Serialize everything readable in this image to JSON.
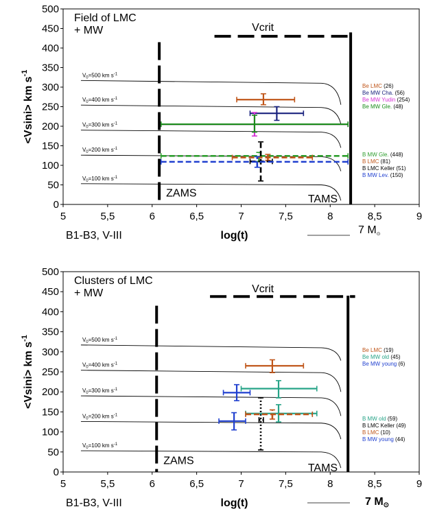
{
  "chart_data": [
    {
      "type": "line",
      "xlim": [
        5,
        9
      ],
      "ylim": [
        0,
        500
      ],
      "xticks": [
        "5",
        "5,5",
        "6",
        "6,5",
        "7",
        "7,5",
        "8",
        "8,5",
        "9"
      ],
      "yticks": [
        "0",
        "50",
        "100",
        "150",
        "200",
        "250",
        "300",
        "350",
        "400",
        "450",
        "500"
      ],
      "xlabel": "log(t)",
      "ylabel": "<Vsini> km s",
      "ylabel_sup": "-1",
      "annotations": {
        "topleft_1": "Field of LMC",
        "topleft_2": "+ MW",
        "vcrit": "Vcrit",
        "zams": "ZAMS",
        "tams": "TAMS",
        "bottom_left": "B1-B3, V-III",
        "mass_label": "7 M",
        "mass_sym": "⊙"
      },
      "v0_labels": [
        "V",
        "V",
        "V",
        "V",
        "V"
      ],
      "v0_values": [
        "=500 km s",
        "=400 km s",
        "=300 km s",
        "=200 km s",
        "=100 km s"
      ],
      "v0_sub": "0",
      "v0_sup": "-1",
      "tracks": [
        {
          "v0": 500,
          "start": 317,
          "flat": 310,
          "drop_to": 255
        },
        {
          "v0": 400,
          "start": 254,
          "flat": 248,
          "drop_to": 205
        },
        {
          "v0": 300,
          "start": 190,
          "flat": 185,
          "drop_to": 145
        },
        {
          "v0": 200,
          "start": 126,
          "flat": 122,
          "drop_to": 85
        },
        {
          "v0": 100,
          "start": 53,
          "flat": 50,
          "drop_to": 10
        }
      ],
      "zams_x": 6.08,
      "tams_x": 8.23,
      "vcrit_line": {
        "x0": 6.7,
        "x1": 8.2,
        "y": 430
      },
      "series": [
        {
          "name": "Be LMC",
          "count": "(26)",
          "color": "#c0561a",
          "x": 7.25,
          "y": 268,
          "xerr": [
            6.95,
            7.6
          ],
          "yerr": [
            255,
            283
          ],
          "style": "solid"
        },
        {
          "name": "Be MW Cha.",
          "count": "(56)",
          "color": "#1a237e",
          "x": 7.4,
          "y": 233,
          "xerr": [
            7.1,
            7.7
          ],
          "yerr": [
            215,
            250
          ],
          "style": "solid"
        },
        {
          "name": "Be MW Yudin",
          "count": "(254)",
          "color": "#d633d6",
          "x": 7.15,
          "y": 205,
          "xerr": [
            6.1,
            8.2
          ],
          "yerr": [
            175,
            235
          ],
          "style": "solid"
        },
        {
          "name": "Be MW Gle.",
          "count": "(48)",
          "color": "#1a8c1a",
          "x": 7.15,
          "y": 205,
          "xerr": [
            6.1,
            8.2
          ],
          "yerr": [
            185,
            228
          ],
          "style": "solid"
        },
        {
          "name": "B MW Gle.",
          "count": "(448)",
          "color": "#2e9e2e",
          "x": 7.2,
          "y": 124,
          "xerr": [
            6.1,
            8.2
          ],
          "yerr": [
            110,
            133
          ],
          "style": "dashed"
        },
        {
          "name": "B LMC",
          "count": "(81)",
          "color": "#c0561a",
          "x": 7.3,
          "y": 120,
          "xerr": [
            6.9,
            7.8
          ],
          "yerr": [
            113,
            128
          ],
          "style": "dashed"
        },
        {
          "name": "B LMC Keller",
          "count": "(51)",
          "color": "#000000",
          "x": 7.22,
          "y": 110,
          "xerr": [
            7.1,
            7.35
          ],
          "yerr": [
            60,
            160
          ],
          "style": "dashed"
        },
        {
          "name": "B MW Lev.",
          "count": "(150)",
          "color": "#1f3fcf",
          "x": 7.18,
          "y": 109,
          "xerr": [
            6.1,
            8.2
          ],
          "yerr": [
            95,
            122
          ],
          "style": "dashed"
        }
      ]
    },
    {
      "type": "line",
      "xlim": [
        5,
        9
      ],
      "ylim": [
        0,
        500
      ],
      "xticks": [
        "5",
        "5,5",
        "6",
        "6,5",
        "7",
        "7,5",
        "8",
        "8,5",
        "9"
      ],
      "yticks": [
        "0",
        "50",
        "100",
        "150",
        "200",
        "250",
        "300",
        "350",
        "400",
        "450",
        "500"
      ],
      "xlabel": "log(t)",
      "ylabel": "<Vsini> km s",
      "ylabel_sup": "-1",
      "annotations": {
        "topleft_1": "Clusters of  LMC",
        "topleft_2": "+ MW",
        "vcrit": "Vcrit",
        "zams": "ZAMS",
        "tams": "TAMS",
        "bottom_left": "B1-B3, V-III",
        "mass_label": "7 M",
        "mass_sym": "⊙"
      },
      "v0_labels": [
        "V",
        "V",
        "V",
        "V",
        "V"
      ],
      "v0_values": [
        "=500 km s",
        "=400 km s",
        "=300 km s",
        "=200 km s",
        "=100 km s"
      ],
      "v0_sub": "0",
      "v0_sup": "-1",
      "tracks": [
        {
          "v0": 500,
          "start": 317,
          "flat": 310,
          "drop_to": 278
        },
        {
          "v0": 400,
          "start": 254,
          "flat": 248,
          "drop_to": 200
        },
        {
          "v0": 300,
          "start": 190,
          "flat": 185,
          "drop_to": 140
        },
        {
          "v0": 200,
          "start": 126,
          "flat": 122,
          "drop_to": 82
        },
        {
          "v0": 100,
          "start": 53,
          "flat": 50,
          "drop_to": 10
        }
      ],
      "zams_x": 6.05,
      "tams_x": 8.2,
      "vcrit_line": {
        "x0": 6.65,
        "x1": 8.28,
        "y": 438
      },
      "series": [
        {
          "name": "Be LMC",
          "count": "(19)",
          "color": "#c0561a",
          "x": 7.35,
          "y": 265,
          "xerr": [
            7.05,
            7.7
          ],
          "yerr": [
            248,
            280
          ],
          "style": "solid"
        },
        {
          "name": "Be MW old",
          "count": "(45)",
          "color": "#26a387",
          "x": 7.42,
          "y": 208,
          "xerr": [
            7.0,
            7.85
          ],
          "yerr": [
            185,
            228
          ],
          "style": "solid"
        },
        {
          "name": "Be MW young",
          "count": "(6)",
          "color": "#1f3fcf",
          "x": 6.95,
          "y": 198,
          "xerr": [
            6.8,
            7.1
          ],
          "yerr": [
            178,
            218
          ],
          "style": "solid"
        },
        {
          "name": "B MW old",
          "count": "(59)",
          "color": "#26a387",
          "x": 7.42,
          "y": 146,
          "xerr": [
            7.05,
            7.85
          ],
          "yerr": [
            125,
            168
          ],
          "style": "solid"
        },
        {
          "name": "B LMC Keller",
          "count": "(49)",
          "color": "#000000",
          "x": 7.22,
          "y": 130,
          "xerr": [
            7.2,
            7.25
          ],
          "yerr": [
            55,
            185
          ],
          "style": "dotted"
        },
        {
          "name": "B LMC",
          "count": "(10)",
          "color": "#c0561a",
          "x": 7.35,
          "y": 144,
          "xerr": [
            7.05,
            7.8
          ],
          "yerr": [
            132,
            155
          ],
          "style": "dashed"
        },
        {
          "name": "B MW young",
          "count": "(44)",
          "color": "#1f3fcf",
          "x": 6.92,
          "y": 127,
          "xerr": [
            6.75,
            7.05
          ],
          "yerr": [
            105,
            148
          ],
          "style": "solid"
        }
      ]
    }
  ]
}
